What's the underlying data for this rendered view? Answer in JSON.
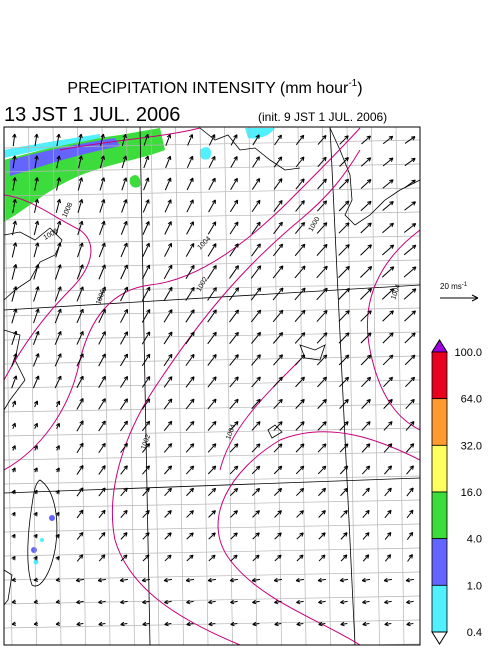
{
  "header": {
    "title": "PRECIPITATION INTENSITY (mm hour",
    "title_superscript": "-1",
    "title_end": ")",
    "valid_time": "13 JST 1 JUL. 2006",
    "init_time": "(init. 9 JST 1 JUL. 2006)"
  },
  "vector_legend": {
    "label": "20 ms",
    "superscript": "-1"
  },
  "colorbar": {
    "labels": [
      "100.0",
      "64.0",
      "32.0",
      "16.0",
      "4.0",
      "1.0",
      "0.4"
    ],
    "colors": [
      "#e8001e",
      "#ff9a30",
      "#ffff60",
      "#3cdc3c",
      "#6464ff",
      "#50f0ff"
    ],
    "over_color": "#a000e0",
    "under_color": "#ffffff"
  },
  "contours": {
    "labels": [
      "1008",
      "1006",
      "1004",
      "1000",
      "1002",
      "1004",
      "1002",
      "1004",
      "1008"
    ]
  }
}
